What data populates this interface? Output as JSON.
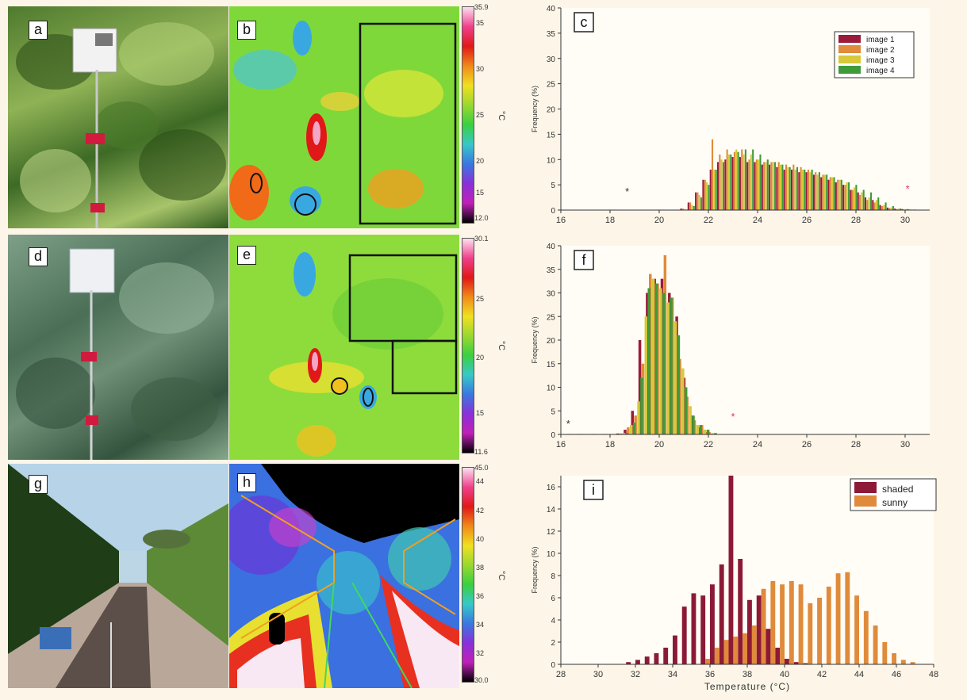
{
  "panel_labels": {
    "a": "a",
    "b": "b",
    "c": "c",
    "d": "d",
    "e": "e",
    "f": "f",
    "g": "g",
    "h": "h",
    "i": "i"
  },
  "colorbars": {
    "b": {
      "max": "35.9",
      "ticks": [
        "35",
        "30",
        "25",
        "20",
        "15"
      ],
      "min": "12.0",
      "unit": "°C"
    },
    "e": {
      "max": "30.1",
      "ticks": [
        "25",
        "20",
        "15"
      ],
      "min": "11.6",
      "unit": "°C"
    },
    "h": {
      "max": "45.0",
      "ticks": [
        "44",
        "42",
        "40",
        "38",
        "36",
        "34",
        "32"
      ],
      "min": "30.0",
      "unit": "°C"
    }
  },
  "colors": {
    "image1": "#9b1b3a",
    "image2": "#e08a3c",
    "image3": "#d8c83a",
    "image4": "#3f9a3a",
    "shaded": "#8c1a36",
    "sunny": "#e08a3c"
  },
  "chart_data": [
    {
      "id": "c",
      "type": "bar",
      "ylabel": "Frequency (%)",
      "xlabel": "",
      "xlim": [
        16,
        31
      ],
      "ylim": [
        0,
        40
      ],
      "xticks": [
        16,
        18,
        20,
        22,
        24,
        26,
        28,
        30
      ],
      "yticks": [
        0,
        5,
        10,
        15,
        20,
        25,
        30,
        35,
        40
      ],
      "legend": "top-right",
      "bin_centers": [
        21.0,
        21.3,
        21.6,
        21.9,
        22.2,
        22.5,
        22.8,
        23.1,
        23.4,
        23.7,
        24.0,
        24.3,
        24.6,
        24.9,
        25.2,
        25.5,
        25.8,
        26.1,
        26.4,
        26.7,
        27.0,
        27.3,
        27.6,
        27.9,
        28.2,
        28.5,
        28.8,
        29.1,
        29.4,
        29.7,
        30.0,
        30.3
      ],
      "series": [
        {
          "name": "image 1",
          "values": [
            0.3,
            1.5,
            3.5,
            6.0,
            8.0,
            9.5,
            10.0,
            10.5,
            10.5,
            9.5,
            9.5,
            9.0,
            9.0,
            8.5,
            8.0,
            8.0,
            7.5,
            7.5,
            7.0,
            6.5,
            6.0,
            5.5,
            5.0,
            4.0,
            3.5,
            2.5,
            2.0,
            1.0,
            0.5,
            0.3,
            0.2,
            0.1
          ]
        },
        {
          "name": "image 2",
          "values": [
            0.3,
            1.5,
            3.5,
            6.0,
            14.0,
            11.0,
            12.0,
            11.5,
            12.0,
            10.0,
            10.0,
            9.5,
            9.5,
            9.5,
            9.0,
            9.0,
            8.5,
            8.0,
            7.5,
            7.0,
            6.5,
            6.0,
            5.0,
            4.0,
            3.0,
            2.0,
            1.5,
            0.8,
            0.4,
            0.2,
            0.1,
            0.1
          ]
        },
        {
          "name": "image 3",
          "values": [
            0.2,
            1.0,
            3.0,
            5.5,
            8.0,
            10.0,
            11.0,
            12.0,
            11.0,
            11.0,
            10.0,
            9.5,
            9.5,
            9.0,
            8.5,
            8.0,
            8.0,
            7.5,
            7.0,
            7.0,
            6.5,
            6.0,
            5.5,
            4.5,
            3.5,
            2.5,
            2.0,
            1.0,
            0.5,
            0.3,
            0.2,
            0.1
          ]
        },
        {
          "name": "image 4",
          "values": [
            0.1,
            0.8,
            2.5,
            5.0,
            8.0,
            9.5,
            11.0,
            11.5,
            12.0,
            12.0,
            11.0,
            10.0,
            9.5,
            9.0,
            8.5,
            8.5,
            8.0,
            8.0,
            7.5,
            7.0,
            6.5,
            6.0,
            5.5,
            5.0,
            4.0,
            3.5,
            2.5,
            1.5,
            0.8,
            0.3,
            0.2,
            0.1
          ]
        }
      ],
      "markers": [
        {
          "x": 18.7,
          "y": 3.0,
          "color": "#333333"
        },
        {
          "x": 30.1,
          "y": 3.5,
          "color": "#d9386a"
        }
      ]
    },
    {
      "id": "f",
      "type": "bar",
      "ylabel": "Frequency (%)",
      "xlabel": "",
      "xlim": [
        16,
        31
      ],
      "ylim": [
        0,
        40
      ],
      "xticks": [
        16,
        18,
        20,
        22,
        24,
        26,
        28,
        30
      ],
      "yticks": [
        0,
        5,
        10,
        15,
        20,
        25,
        30,
        35,
        40
      ],
      "bin_centers": [
        16.5,
        17.0,
        17.5,
        18.0,
        18.5,
        18.8,
        19.1,
        19.4,
        19.7,
        20.0,
        20.3,
        20.6,
        20.9,
        21.2,
        21.5,
        21.8,
        22.1
      ],
      "series": [
        {
          "name": "image 1",
          "values": [
            0.1,
            0.1,
            0.1,
            0.1,
            0.2,
            1.0,
            5.0,
            20.0,
            30.0,
            33.0,
            33.0,
            30.0,
            25.0,
            12.0,
            4.0,
            1.5,
            0.5
          ]
        },
        {
          "name": "image 2",
          "values": [
            0.1,
            0.1,
            0.1,
            0.1,
            0.2,
            1.5,
            4.0,
            15.0,
            34.0,
            32.0,
            38.0,
            29.0,
            16.0,
            8.0,
            3.0,
            2.0,
            0.5
          ]
        },
        {
          "name": "image 3",
          "values": [
            0.1,
            0.1,
            0.1,
            0.1,
            0.3,
            2.0,
            7.0,
            25.0,
            33.0,
            31.0,
            28.0,
            24.0,
            14.0,
            6.0,
            2.0,
            1.0,
            0.3
          ]
        },
        {
          "name": "image 4",
          "values": [
            0.1,
            0.1,
            0.1,
            0.1,
            0.3,
            2.5,
            12.0,
            31.0,
            32.0,
            30.0,
            29.0,
            21.0,
            10.0,
            4.0,
            2.0,
            1.0,
            0.3
          ]
        }
      ],
      "markers": [
        {
          "x": 16.3,
          "y": 1.5,
          "color": "#333333"
        },
        {
          "x": 23.0,
          "y": 3.0,
          "color": "#d9386a"
        }
      ]
    },
    {
      "id": "i",
      "type": "bar",
      "ylabel": "Frequency (%)",
      "xlabel": "Temperature (°C)",
      "xlim": [
        28,
        48
      ],
      "ylim": [
        0,
        17
      ],
      "xticks": [
        28,
        30,
        32,
        34,
        36,
        38,
        40,
        42,
        44,
        46,
        48
      ],
      "yticks": [
        0,
        2,
        4,
        6,
        8,
        10,
        12,
        14,
        16
      ],
      "legend": "top-right",
      "bin_centers": [
        31.75,
        32.25,
        32.75,
        33.25,
        33.75,
        34.25,
        34.75,
        35.25,
        35.75,
        36.25,
        36.75,
        37.25,
        37.75,
        38.25,
        38.75,
        39.25,
        39.75,
        40.25,
        40.75,
        41.25,
        41.75,
        42.25,
        42.75,
        43.25,
        43.75,
        44.25,
        44.75,
        45.25,
        45.75,
        46.25,
        46.75
      ],
      "series": [
        {
          "name": "shaded",
          "values": [
            0.2,
            0.4,
            0.7,
            1.0,
            1.5,
            2.6,
            5.2,
            6.4,
            6.2,
            7.2,
            9.0,
            17.0,
            9.5,
            5.8,
            6.2,
            3.2,
            1.5,
            0.5,
            0.2,
            0.1,
            0,
            0,
            0,
            0,
            0,
            0,
            0,
            0,
            0,
            0,
            0
          ]
        },
        {
          "name": "sunny",
          "values": [
            0,
            0,
            0,
            0,
            0,
            0,
            0,
            0,
            0.5,
            1.5,
            2.2,
            2.5,
            2.8,
            3.5,
            6.8,
            7.5,
            7.2,
            7.5,
            7.2,
            5.5,
            6.0,
            7.0,
            8.2,
            8.3,
            6.2,
            4.8,
            3.5,
            2.0,
            1.0,
            0.4,
            0.2
          ]
        }
      ]
    }
  ]
}
